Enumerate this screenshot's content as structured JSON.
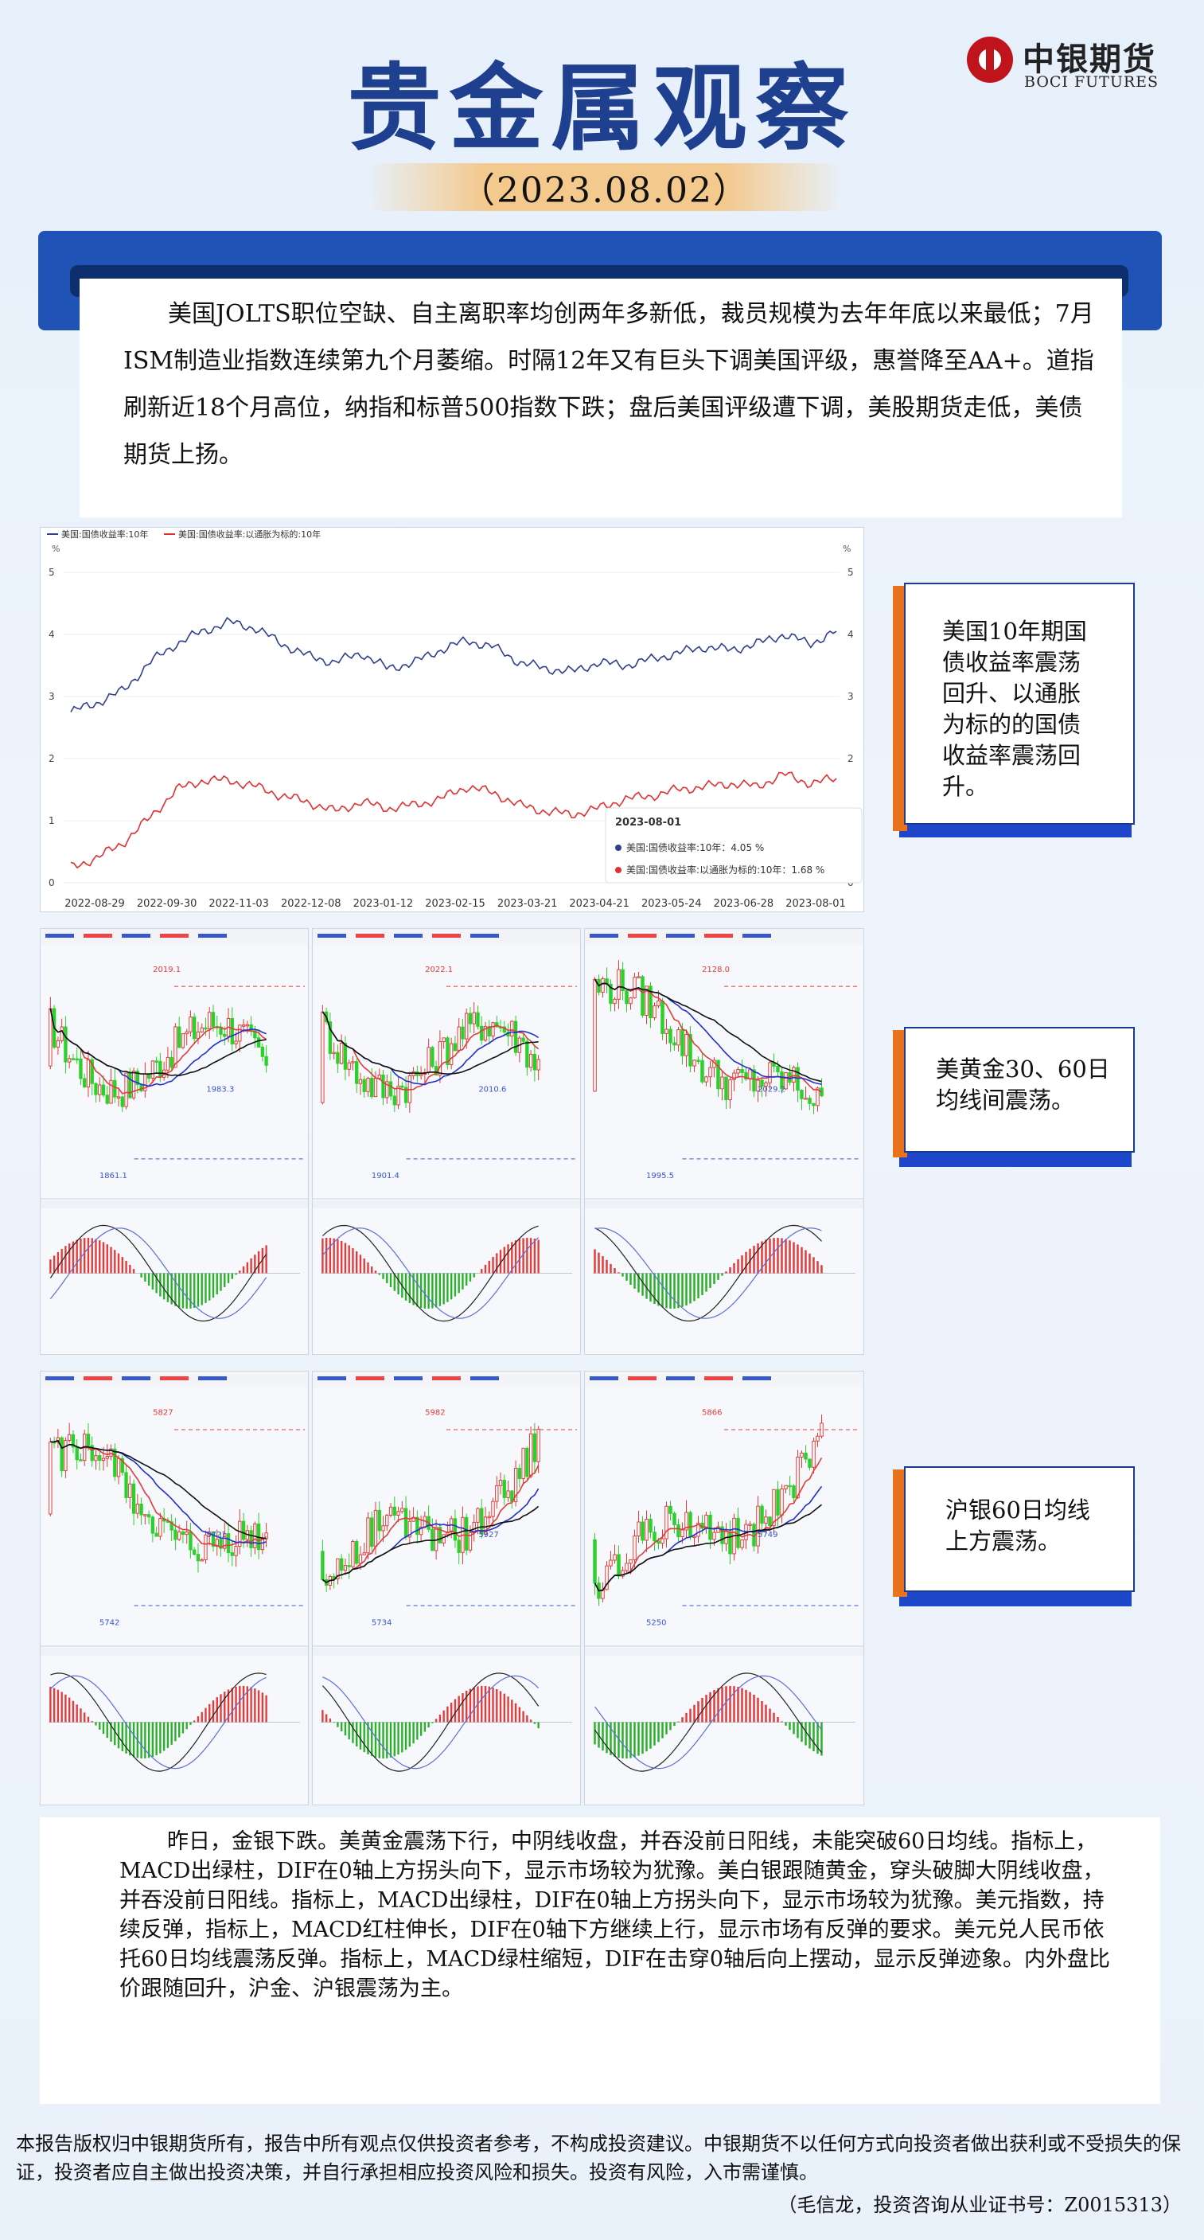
{
  "header": {
    "title": "贵金属观察",
    "date": "（2023.08.02）",
    "logo_cn": "中银期货",
    "logo_en": "BOCI FUTURES"
  },
  "summary": "美国JOLTS职位空缺、自主离职率均创两年多新低，裁员规模为去年年底以来最低；7月ISM制造业指数连续第九个月萎缩。时隔12年又有巨头下调美国评级，惠誉降至AA+。道指刷新近18个月高位，纳指和标普500指数下跌；盘后美国评级遭下调，美股期货走低，美债期货上扬。",
  "callouts": [
    "美国10年期国债收益率震荡回升、以通胀为标的的国债收益率震荡回升。",
    "美黄金30、60日均线间震荡。",
    "沪银60日均线上方震荡。"
  ],
  "colors": {
    "nominal": "#2f3f8c",
    "real": "#e03030",
    "accent": "#1f54b6",
    "tab": "#e8731c"
  },
  "chart_data": [
    {
      "type": "line",
      "legend": [
        "美国:国债收益率:10年",
        "美国:国债收益率:以通胀为标的:10年"
      ],
      "ylabel_left": "%",
      "ylabel_right": "%",
      "ylim": [
        0,
        5
      ],
      "yticks": [
        "0",
        "1",
        "2",
        "3",
        "4",
        "5"
      ],
      "xticks": [
        "2022-08-29",
        "2022-09-30",
        "2022-11-03",
        "2022-12-08",
        "2023-01-12",
        "2023-02-15",
        "2023-03-21",
        "2023-04-21",
        "2023-05-24",
        "2023-06-28",
        "2023-08-01"
      ],
      "series": [
        {
          "name": "美国:国债收益率:10年",
          "values": [
            2.75,
            2.9,
            3.1,
            3.55,
            3.85,
            4.05,
            4.2,
            4.1,
            3.85,
            3.65,
            3.55,
            3.7,
            3.45,
            3.55,
            3.75,
            3.9,
            3.8,
            3.55,
            3.45,
            3.4,
            3.55,
            3.5,
            3.6,
            3.7,
            3.8,
            3.75,
            3.85,
            4.0,
            3.85,
            4.05
          ]
        },
        {
          "name": "美国:国债收益率:以通胀为标的:10年",
          "values": [
            0.25,
            0.4,
            0.65,
            1.05,
            1.5,
            1.65,
            1.65,
            1.55,
            1.4,
            1.3,
            1.15,
            1.3,
            1.2,
            1.25,
            1.35,
            1.55,
            1.45,
            1.25,
            1.15,
            1.1,
            1.2,
            1.35,
            1.4,
            1.5,
            1.55,
            1.6,
            1.55,
            1.75,
            1.6,
            1.68
          ]
        }
      ],
      "tooltip": {
        "date": "2023-08-01",
        "rows": [
          "美国:国债收益率:10年：4.05 %",
          "美国:国债收益率:以通胀为标的:10年：1.68 %"
        ]
      }
    }
  ],
  "gold_panels": [
    {
      "peak_label": "2019.1",
      "low_label": "1861.1",
      "mid_label": "1983.3"
    },
    {
      "peak_label": "2022.1",
      "low_label": "1901.4",
      "mid_label": "2010.6"
    },
    {
      "peak_label": "2128.0",
      "low_label": "1995.5",
      "mid_label": "2029.2"
    }
  ],
  "silver_panels": [
    {
      "peak_label": "5827",
      "low_label": "5742",
      "mid_label": "5721"
    },
    {
      "peak_label": "5982",
      "low_label": "5734",
      "mid_label": "5927"
    },
    {
      "peak_label": "5866",
      "low_label": "5250",
      "mid_label": "5749"
    }
  ],
  "analysis": "昨日，金银下跌。美黄金震荡下行，中阴线收盘，并吞没前日阳线，未能突破60日均线。指标上，MACD出绿柱，DIF在0轴上方拐头向下，显示市场较为犹豫。美白银跟随黄金，穿头破脚大阴线收盘，并吞没前日阳线。指标上，MACD出绿柱，DIF在0轴上方拐头向下，显示市场较为犹豫。美元指数，持续反弹，指标上，MACD红柱伸长，DIF在0轴下方继续上行，显示市场有反弹的要求。美元兑人民币依托60日均线震荡反弹。指标上，MACD绿柱缩短，DIF在击穿0轴后向上摆动，显示反弹迹象。内外盘比价跟随回升，沪金、沪银震荡为主。",
  "disclaimer": "本报告版权归中银期货所有，报告中所有观点仅供投资者参考，不构成投资建议。中银期货不以任何方式向投资者做出获利或不受损失的保证，投资者应自主做出投资决策，并自行承担相应投资风险和损失。投资有风险，入市需谨慎。",
  "author": "（毛信龙，投资咨询从业证书号：Z0015313）"
}
